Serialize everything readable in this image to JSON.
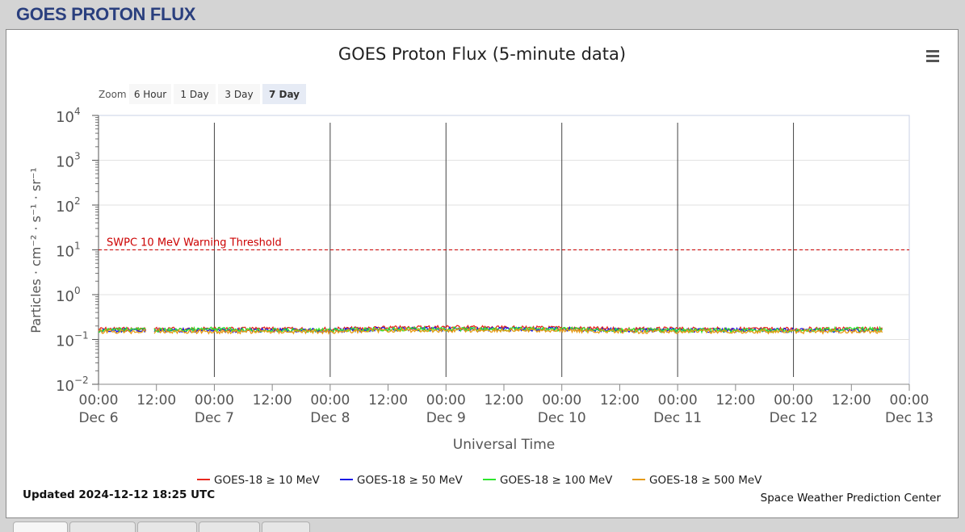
{
  "page": {
    "title": "GOES PROTON FLUX"
  },
  "chart": {
    "title": "GOES Proton Flux (5-minute data)",
    "zoom_label": "Zoom",
    "zoom_buttons": [
      "6 Hour",
      "1 Day",
      "3 Day",
      "7 Day"
    ],
    "zoom_selected": "7 Day",
    "updated": "Updated 2024-12-12 18:25 UTC",
    "credit": "Space Weather Prediction Center",
    "threshold_label": "SWPC 10 MeV Warning Threshold",
    "menu_icon": "hamburger-menu-icon"
  },
  "chart_data": {
    "type": "line",
    "title": "GOES Proton Flux (5-minute data)",
    "xlabel": "Universal Time",
    "ylabel": "Particles · cm⁻² · s⁻¹ · sr⁻¹",
    "yscale": "log",
    "ylim": [
      0.01,
      10000
    ],
    "y_ticks": [
      {
        "base": "10",
        "exp": "4"
      },
      {
        "base": "10",
        "exp": "3"
      },
      {
        "base": "10",
        "exp": "2"
      },
      {
        "base": "10",
        "exp": "1"
      },
      {
        "base": "10",
        "exp": "0"
      },
      {
        "base": "10",
        "exp": "−1"
      },
      {
        "base": "10",
        "exp": "−2"
      }
    ],
    "x_range": [
      "2024-12-06 00:00",
      "2024-12-13 00:00"
    ],
    "x_ticks": [
      {
        "time": "00:00",
        "date": "Dec 6"
      },
      {
        "time": "12:00",
        "date": ""
      },
      {
        "time": "00:00",
        "date": "Dec 7"
      },
      {
        "time": "12:00",
        "date": ""
      },
      {
        "time": "00:00",
        "date": "Dec 8"
      },
      {
        "time": "12:00",
        "date": ""
      },
      {
        "time": "00:00",
        "date": "Dec 9"
      },
      {
        "time": "12:00",
        "date": ""
      },
      {
        "time": "00:00",
        "date": "Dec 10"
      },
      {
        "time": "12:00",
        "date": ""
      },
      {
        "time": "00:00",
        "date": "Dec 11"
      },
      {
        "time": "12:00",
        "date": ""
      },
      {
        "time": "00:00",
        "date": "Dec 12"
      },
      {
        "time": "12:00",
        "date": ""
      },
      {
        "time": "00:00",
        "date": "Dec 13"
      }
    ],
    "day_boundaries": [
      "2024-12-07 00:00",
      "2024-12-08 00:00",
      "2024-12-09 00:00",
      "2024-12-10 00:00",
      "2024-12-11 00:00",
      "2024-12-12 00:00"
    ],
    "threshold": {
      "value": 10,
      "label": "SWPC 10 MeV Warning Threshold",
      "color": "#cc0000"
    },
    "grid": true,
    "legend_position": "bottom-center",
    "series": [
      {
        "name": "GOES-18 ≥ 10 MeV",
        "color": "#e8281e",
        "x": [
          "2024-12-06 00:00",
          "2024-12-06 06:00",
          "2024-12-06 14:00",
          "2024-12-07 00:00",
          "2024-12-07 12:00",
          "2024-12-08 00:00",
          "2024-12-08 12:00",
          "2024-12-09 00:00",
          "2024-12-09 12:00",
          "2024-12-10 00:00",
          "2024-12-10 12:00",
          "2024-12-11 00:00",
          "2024-12-11 12:00",
          "2024-12-12 00:00",
          "2024-12-12 12:00",
          "2024-12-12 18:25"
        ],
        "y": [
          0.17,
          0.17,
          0.17,
          0.17,
          0.17,
          0.17,
          0.18,
          0.19,
          0.18,
          0.18,
          0.17,
          0.17,
          0.17,
          0.17,
          0.17,
          0.17
        ]
      },
      {
        "name": "GOES-18 ≥ 50 MeV",
        "color": "#1a1ae6",
        "x": [
          "2024-12-06 00:00",
          "2024-12-06 06:00",
          "2024-12-06 14:00",
          "2024-12-07 00:00",
          "2024-12-07 12:00",
          "2024-12-08 00:00",
          "2024-12-08 12:00",
          "2024-12-09 00:00",
          "2024-12-09 12:00",
          "2024-12-10 00:00",
          "2024-12-10 12:00",
          "2024-12-11 00:00",
          "2024-12-11 12:00",
          "2024-12-12 00:00",
          "2024-12-12 12:00",
          "2024-12-12 18:25"
        ],
        "y": [
          0.16,
          0.16,
          0.16,
          0.16,
          0.16,
          0.16,
          0.17,
          0.17,
          0.17,
          0.17,
          0.16,
          0.16,
          0.16,
          0.16,
          0.16,
          0.16
        ]
      },
      {
        "name": "GOES-18 ≥ 100 MeV",
        "color": "#2ee62e",
        "x": [
          "2024-12-06 00:00",
          "2024-12-06 06:00",
          "2024-12-06 14:00",
          "2024-12-07 00:00",
          "2024-12-07 12:00",
          "2024-12-08 00:00",
          "2024-12-08 12:00",
          "2024-12-09 00:00",
          "2024-12-09 12:00",
          "2024-12-10 00:00",
          "2024-12-10 12:00",
          "2024-12-11 00:00",
          "2024-12-11 12:00",
          "2024-12-12 00:00",
          "2024-12-12 12:00",
          "2024-12-12 18:25"
        ],
        "y": [
          0.16,
          0.17,
          0.16,
          0.17,
          0.16,
          0.16,
          0.17,
          0.17,
          0.17,
          0.17,
          0.16,
          0.16,
          0.16,
          0.16,
          0.17,
          0.17
        ]
      },
      {
        "name": "GOES-18 ≥ 500 MeV",
        "color": "#e69a12",
        "x": [
          "2024-12-06 00:00",
          "2024-12-06 06:00",
          "2024-12-06 14:00",
          "2024-12-07 00:00",
          "2024-12-07 12:00",
          "2024-12-08 00:00",
          "2024-12-08 12:00",
          "2024-12-09 00:00",
          "2024-12-09 12:00",
          "2024-12-10 00:00",
          "2024-12-10 12:00",
          "2024-12-11 00:00",
          "2024-12-11 12:00",
          "2024-12-12 00:00",
          "2024-12-12 12:00",
          "2024-12-12 18:25"
        ],
        "y": [
          0.15,
          0.15,
          0.15,
          0.15,
          0.15,
          0.15,
          0.16,
          0.16,
          0.16,
          0.16,
          0.15,
          0.15,
          0.15,
          0.15,
          0.15,
          0.15
        ]
      }
    ],
    "gap": [
      "2024-12-06 10:00",
      "2024-12-06 11:30"
    ]
  }
}
